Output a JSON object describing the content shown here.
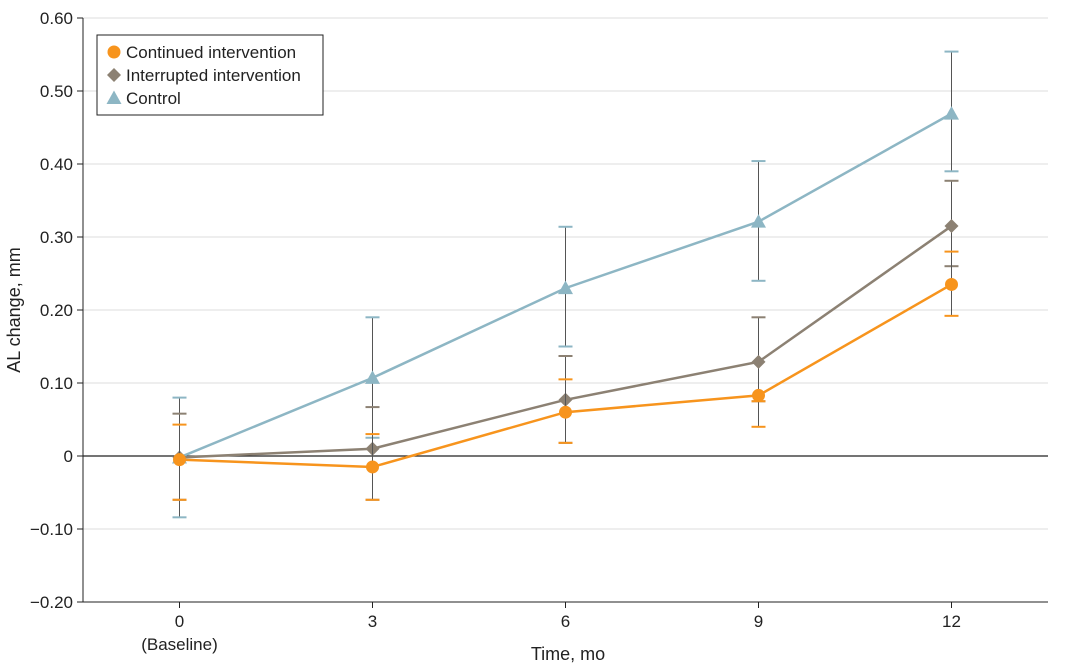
{
  "chart_data": {
    "type": "line",
    "title": "",
    "xlabel": "Time, mo",
    "ylabel": "AL change, mm",
    "x": [
      0,
      3,
      6,
      9,
      12
    ],
    "x_tick_labels": [
      "0",
      "3",
      "6",
      "9",
      "12"
    ],
    "x_tick_sublabel": "(Baseline)",
    "xlim": [
      -1.5,
      13.5
    ],
    "ylim": [
      -0.2,
      0.6
    ],
    "y_ticks": [
      -0.2,
      -0.1,
      0,
      0.1,
      0.2,
      0.3,
      0.4,
      0.5,
      0.6
    ],
    "y_tick_labels": [
      "−0.20",
      "−0.10",
      "0",
      "0.10",
      "0.20",
      "0.30",
      "0.40",
      "0.50",
      "0.60"
    ],
    "grid": "horizontal",
    "legend_position": "top-left",
    "series": [
      {
        "name": "Continued intervention",
        "color": "#f7941d",
        "marker": "circle",
        "values": [
          -0.005,
          -0.015,
          0.06,
          0.083,
          0.235
        ],
        "err_low": [
          -0.06,
          -0.06,
          0.018,
          0.04,
          0.192
        ],
        "err_high": [
          0.043,
          0.03,
          0.105,
          0.075,
          0.28
        ]
      },
      {
        "name": "Interrupted intervention",
        "color": "#8c8173",
        "marker": "diamond",
        "values": [
          -0.002,
          0.01,
          0.077,
          0.129,
          0.315
        ],
        "err_low": [
          -0.06,
          -0.06,
          0.018,
          0.075,
          0.26
        ],
        "err_high": [
          0.058,
          0.067,
          0.137,
          0.19,
          0.377
        ]
      },
      {
        "name": "Control",
        "color": "#8db6c4",
        "marker": "triangle",
        "values": [
          -0.002,
          0.107,
          0.23,
          0.321,
          0.469
        ],
        "err_low": [
          -0.084,
          0.025,
          0.15,
          0.24,
          0.39
        ],
        "err_high": [
          0.08,
          0.19,
          0.314,
          0.404,
          0.554
        ]
      }
    ]
  }
}
